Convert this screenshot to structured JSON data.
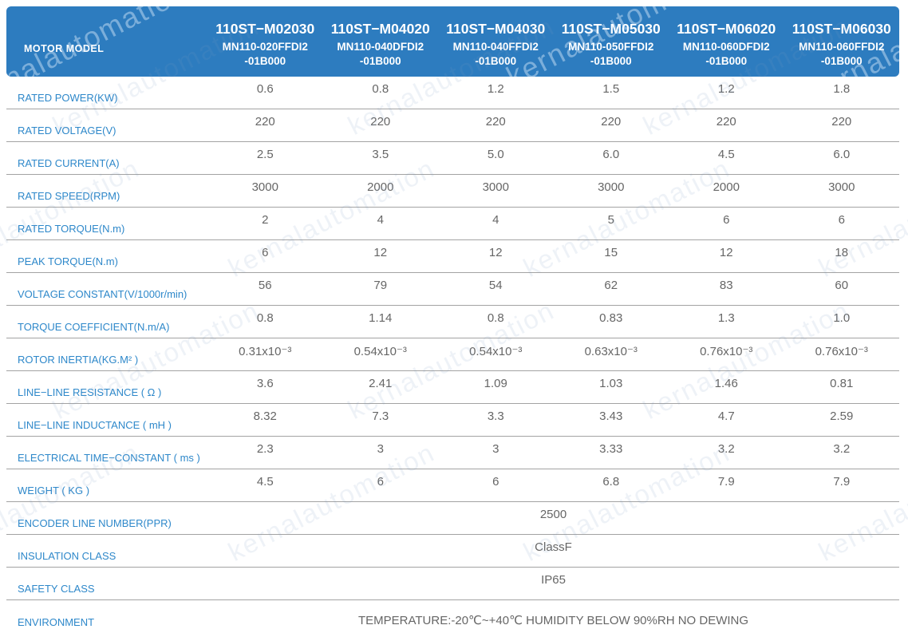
{
  "watermark": {
    "text": "kernalautomation"
  },
  "colors": {
    "header_bg": "#2d7cbf",
    "label_text": "#2e88ca",
    "value_text": "#666666",
    "grid_line": "#a3a3a3"
  },
  "header": {
    "corner_label": "MOTOR MODEL",
    "models": [
      {
        "series": "110ST−M02030",
        "code": "MN110-020FFDI2",
        "code2": "-01B000"
      },
      {
        "series": "110ST−M04020",
        "code": "MN110-040DFDI2",
        "code2": "-01B000"
      },
      {
        "series": "110ST−M04030",
        "code": "MN110-040FFDI2",
        "code2": "-01B000"
      },
      {
        "series": "110ST−M05030",
        "code": "MN110-050FFDI2",
        "code2": "-01B000"
      },
      {
        "series": "110ST−M06020",
        "code": "MN110-060DFDI2",
        "code2": "-01B000"
      },
      {
        "series": "110ST−M06030",
        "code": "MN110-060FFDI2",
        "code2": "-01B000"
      }
    ]
  },
  "table": {
    "rows": [
      {
        "label": "RATED POWER(KW)",
        "values": [
          "0.6",
          "0.8",
          "1.2",
          "1.5",
          "1.2",
          "1.8"
        ]
      },
      {
        "label": "RATED VOLTAGE(V)",
        "values": [
          "220",
          "220",
          "220",
          "220",
          "220",
          "220"
        ]
      },
      {
        "label": "RATED CURRENT(A)",
        "values": [
          "2.5",
          "3.5",
          "5.0",
          "6.0",
          "4.5",
          "6.0"
        ]
      },
      {
        "label": "RATED SPEED(RPM)",
        "values": [
          "3000",
          "2000",
          "3000",
          "3000",
          "2000",
          "3000"
        ]
      },
      {
        "label": "RATED TORQUE(N.m)",
        "values": [
          "2",
          "4",
          "4",
          "5",
          "6",
          "6"
        ]
      },
      {
        "label": "PEAK TORQUE(N.m)",
        "values": [
          "6",
          "12",
          "12",
          "15",
          "12",
          "18"
        ]
      },
      {
        "label": "VOLTAGE CONSTANT(V/1000r/min)",
        "values": [
          "56",
          "79",
          "54",
          "62",
          "83",
          "60"
        ]
      },
      {
        "label": "TORQUE COEFFICIENT(N.m/A)",
        "values": [
          "0.8",
          "1.14",
          "0.8",
          "0.83",
          "1.3",
          "1.0"
        ]
      },
      {
        "label": "ROTOR INERTIA(KG.M² )",
        "values": [
          "0.31x10⁻³",
          "0.54x10⁻³",
          "0.54x10⁻³",
          "0.63x10⁻³",
          "0.76x10⁻³",
          "0.76x10⁻³"
        ]
      },
      {
        "label": "LINE−LINE RESISTANCE ( Ω )",
        "values": [
          "3.6",
          "2.41",
          "1.09",
          "1.03",
          "1.46",
          "0.81"
        ]
      },
      {
        "label": "LINE−LINE INDUCTANCE ( mH )",
        "values": [
          "8.32",
          "7.3",
          "3.3",
          "3.43",
          "4.7",
          "2.59"
        ]
      },
      {
        "label": "ELECTRICAL TIME−CONSTANT ( ms )",
        "values": [
          "2.3",
          "3",
          "3",
          "3.33",
          "3.2",
          "3.2"
        ]
      },
      {
        "label": "WEIGHT ( KG )",
        "values": [
          "4.5",
          "6",
          "6",
          "6.8",
          "7.9",
          "7.9"
        ]
      },
      {
        "label": "ENCODER LINE NUMBER(PPR)",
        "span_value": "2500"
      },
      {
        "label": "INSULATION CLASS",
        "span_value": "ClassF"
      },
      {
        "label": "SAFETY CLASS",
        "span_value": "IP65"
      },
      {
        "label": "ENVIRONMENT",
        "span_value": "TEMPERATURE:-20℃~+40℃  HUMIDITY BELOW 90%RH NO DEWING",
        "value_align": "bottom"
      }
    ]
  }
}
